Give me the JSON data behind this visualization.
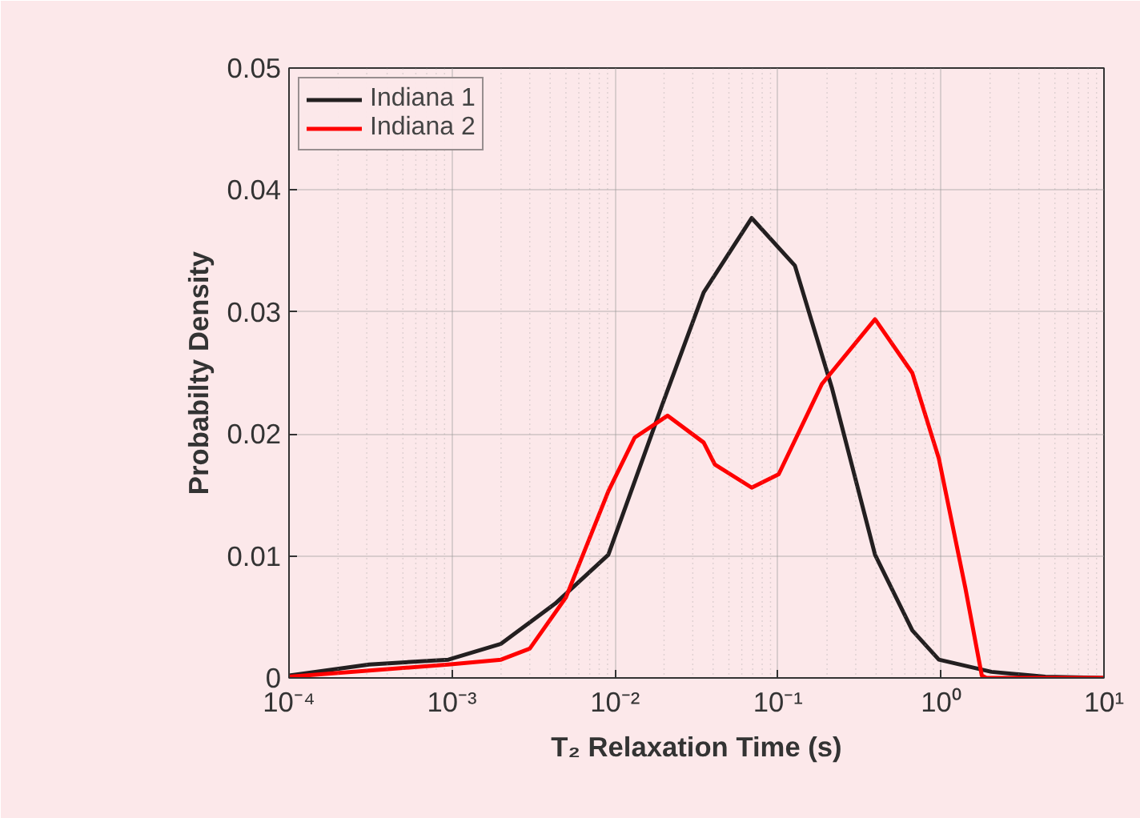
{
  "chart_data": {
    "type": "line",
    "xlabel": "T₂ Relaxation Time (s)",
    "ylabel": "Probabilty Density",
    "log": "x",
    "grid": true,
    "legend": "top left",
    "xlim": [
      0.0001,
      10
    ],
    "ylim": [
      0,
      0.05
    ],
    "xticks": [
      {
        "value": 0.0001,
        "label": "10⁻⁴"
      },
      {
        "value": 0.001,
        "label": "10⁻³"
      },
      {
        "value": 0.01,
        "label": "10⁻²"
      },
      {
        "value": 0.1,
        "label": "10⁻¹"
      },
      {
        "value": 1,
        "label": "10⁰"
      },
      {
        "value": 10,
        "label": "10¹"
      }
    ],
    "yticks": [
      0,
      0.01,
      0.02,
      0.03,
      0.04,
      0.05
    ],
    "series": [
      {
        "name": "Indiana 1",
        "color": "#231f20",
        "x": [
          0.0001,
          0.00031,
          0.00095,
          0.002,
          0.0043,
          0.0091,
          0.0195,
          0.035,
          0.069,
          0.127,
          0.215,
          0.394,
          0.667,
          0.97,
          2.04,
          4.37,
          10
        ],
        "values": [
          0.0002,
          0.0011,
          0.0015,
          0.0028,
          0.0061,
          0.0101,
          0.0224,
          0.0316,
          0.0377,
          0.0338,
          0.0237,
          0.0101,
          0.0039,
          0.0015,
          0.0005,
          0.0001,
          0
        ]
      },
      {
        "name": "Indiana 2",
        "color": "#ff0000",
        "x": [
          0.0001,
          0.00095,
          0.002,
          0.003,
          0.005,
          0.0091,
          0.0132,
          0.021,
          0.035,
          0.041,
          0.069,
          0.101,
          0.186,
          0.394,
          0.667,
          0.97,
          1.41,
          1.78,
          1.9,
          10
        ],
        "values": [
          0.0001,
          0.0011,
          0.0015,
          0.0024,
          0.0066,
          0.0153,
          0.0197,
          0.0215,
          0.0193,
          0.0175,
          0.0156,
          0.0167,
          0.0241,
          0.0294,
          0.025,
          0.018,
          0.0074,
          0.0002,
          0,
          0
        ]
      }
    ]
  }
}
